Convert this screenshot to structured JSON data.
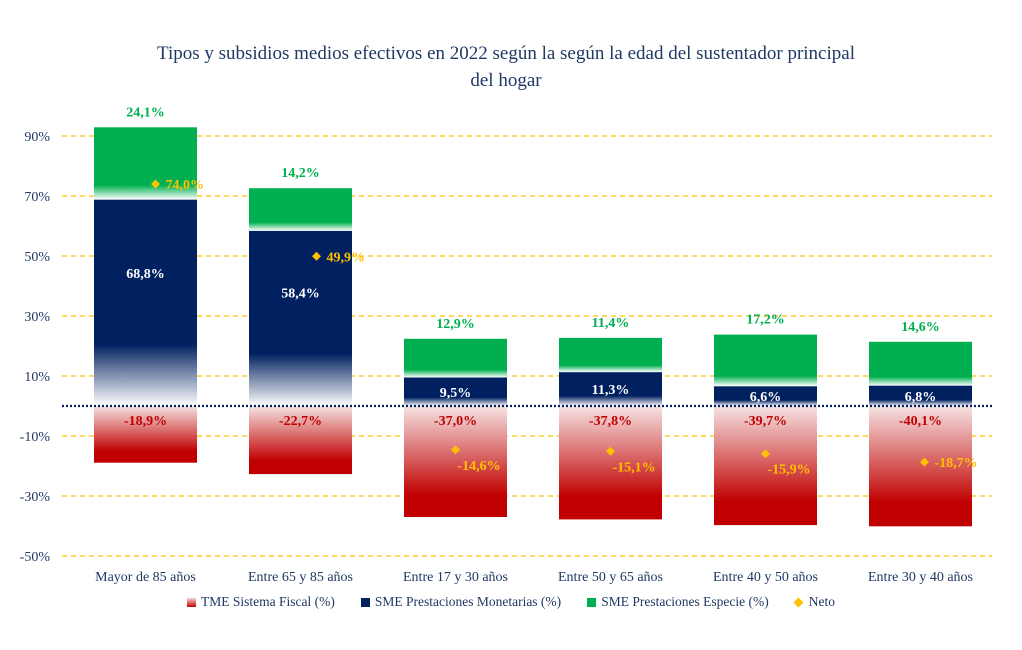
{
  "chart_data": {
    "type": "bar",
    "stacked": true,
    "title": "Tipos y subsidios medios efectivos en 2022 según la según la edad del sustentador principal del hogar",
    "title_lines": [
      "Tipos y subsidios medios efectivos en 2022 según la según la edad del sustentador principal",
      "del hogar"
    ],
    "xlabel": "",
    "ylabel": "",
    "ylim": [
      -50,
      90
    ],
    "yticks": [
      90,
      70,
      50,
      30,
      10,
      -10,
      -30,
      -50
    ],
    "ytick_labels": [
      "90%",
      "70%",
      "50%",
      "30%",
      "10%",
      "-10%",
      "-30%",
      "-50%"
    ],
    "grid": true,
    "legend_position": "bottom",
    "categories": [
      "Mayor de 85 años",
      "Entre 65 y 85 años",
      "Entre 17 y 30 años",
      "Entre 50 y 65 años",
      "Entre 40 y 50 años",
      "Entre 30 y 40 años"
    ],
    "series": [
      {
        "name": "TME Sistema Fiscal (%)",
        "type": "bar",
        "color": "#C00000",
        "values": [
          -18.9,
          -22.7,
          -37.0,
          -37.8,
          -39.7,
          -40.1
        ],
        "labels": [
          "-18,9%",
          "-22,7%",
          "-37,0%",
          "-37,8%",
          "-39,7%",
          "-40,1%"
        ]
      },
      {
        "name": "SME Prestaciones Monetarias (%)",
        "type": "bar",
        "color": "#002060",
        "values": [
          68.8,
          58.4,
          9.5,
          11.3,
          6.6,
          6.8
        ],
        "labels": [
          "68,8%",
          "58,4%",
          "9,5%",
          "11,3%",
          "6,6%",
          "6,8%"
        ]
      },
      {
        "name": "SME Prestaciones Especie (%)",
        "type": "bar",
        "color": "#00B050",
        "values": [
          24.1,
          14.2,
          12.9,
          11.4,
          17.2,
          14.6
        ],
        "labels": [
          "24,1%",
          "14,2%",
          "12,9%",
          "11,4%",
          "17,2%",
          "14,6%"
        ]
      },
      {
        "name": "Neto",
        "type": "marker",
        "color": "#FFC000",
        "values": [
          74.0,
          49.9,
          -14.6,
          -15.1,
          -15.9,
          -18.7
        ],
        "labels": [
          "74,0%",
          "49,9%",
          "-14,6%",
          "-15,1%",
          "-15,9%",
          "-18,7%"
        ]
      }
    ]
  },
  "colors": {
    "axis_text": "#1F3864",
    "gridline": "#FFC000",
    "zero_line": "#002060"
  }
}
